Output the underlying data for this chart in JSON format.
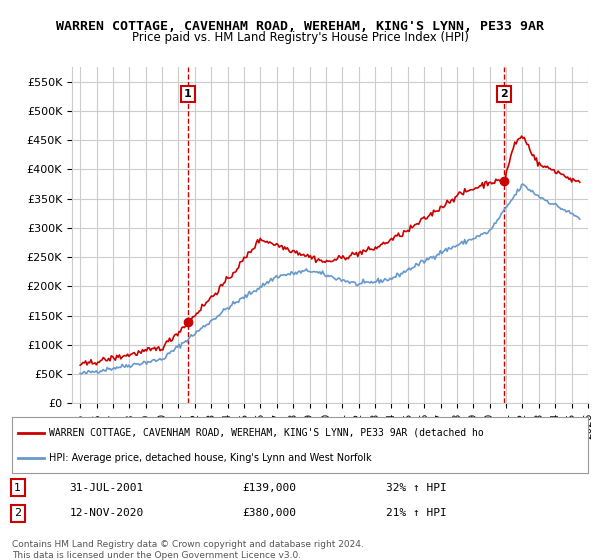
{
  "title": "WARREN COTTAGE, CAVENHAM ROAD, WEREHAM, KING'S LYNN, PE33 9AR",
  "subtitle": "Price paid vs. HM Land Registry's House Price Index (HPI)",
  "legend_label_red": "WARREN COTTAGE, CAVENHAM ROAD, WEREHAM, KING'S LYNN, PE33 9AR (detached ho",
  "legend_label_blue": "HPI: Average price, detached house, King's Lynn and West Norfolk",
  "annotation1_label": "1",
  "annotation1_date": "31-JUL-2001",
  "annotation1_price": "£139,000",
  "annotation1_hpi": "32% ↑ HPI",
  "annotation2_label": "2",
  "annotation2_date": "12-NOV-2020",
  "annotation2_price": "£380,000",
  "annotation2_hpi": "21% ↑ HPI",
  "footer": "Contains HM Land Registry data © Crown copyright and database right 2024.\nThis data is licensed under the Open Government Licence v3.0.",
  "yticks": [
    0,
    50000,
    100000,
    150000,
    200000,
    250000,
    300000,
    350000,
    400000,
    450000,
    500000,
    550000
  ],
  "ytick_labels": [
    "£0",
    "£50K",
    "£100K",
    "£150K",
    "£200K",
    "£250K",
    "£300K",
    "£350K",
    "£400K",
    "£450K",
    "£500K",
    "£550K"
  ],
  "ylim": [
    0,
    575000
  ],
  "color_red": "#cc0000",
  "color_blue": "#6699cc",
  "color_dashed": "#cc0000",
  "background_chart": "#ffffff",
  "background_legend": "#ffffff",
  "grid_color": "#cccccc",
  "sale1_x": 2001.58,
  "sale1_y": 139000,
  "sale2_x": 2020.87,
  "sale2_y": 380000,
  "xtick_start": 1995,
  "xtick_end": 2026,
  "xtick_step": 1
}
